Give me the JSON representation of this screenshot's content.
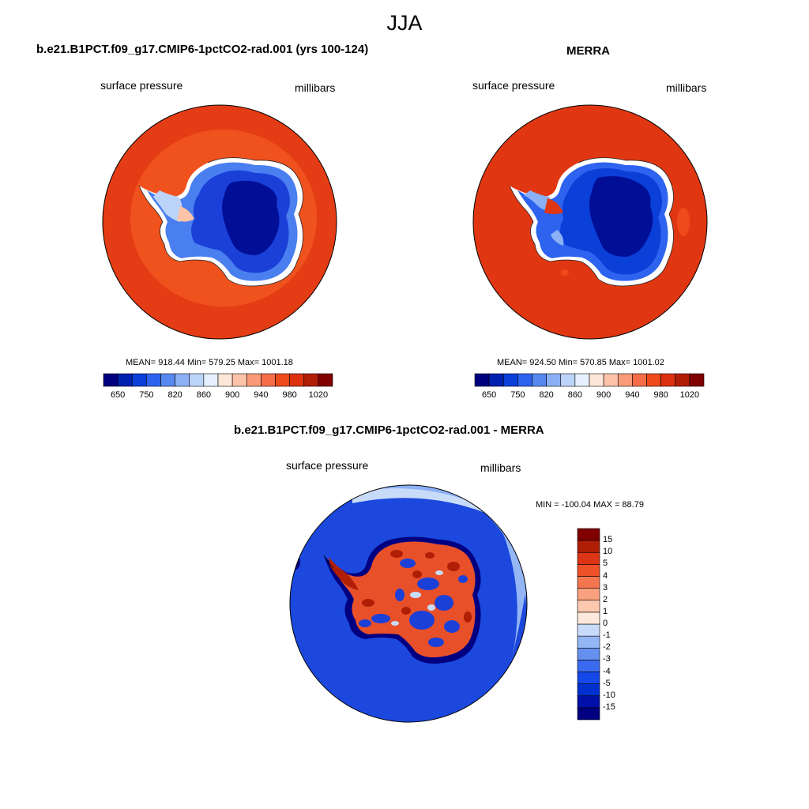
{
  "title": "JJA",
  "panels": [
    {
      "title": "b.e21.B1PCT.f09_g17.CMIP6-1pctCO2-rad.001 (yrs 100-124)",
      "left_label": "surface pressure",
      "right_label": "millibars",
      "stats": "MEAN= 918.44  Min= 579.25  Max= 1001.18"
    },
    {
      "title": "MERRA",
      "left_label": "surface pressure",
      "right_label": "millibars",
      "stats": "MEAN= 924.50  Min= 570.85  Max= 1001.02"
    },
    {
      "title": "b.e21.B1PCT.f09_g17.CMIP6-1pctCO2-rad.001 - MERRA",
      "left_label": "surface pressure",
      "right_label": "millibars",
      "stats": "MIN = -100.04 MAX =  88.79"
    }
  ],
  "colorbar_abs": {
    "colors": [
      "#00007f",
      "#0020b0",
      "#0a3fd8",
      "#2e63f0",
      "#5788f0",
      "#8cb0f5",
      "#bcd4fa",
      "#e6f0ff",
      "#fde6d8",
      "#fcc3a8",
      "#f99a78",
      "#f56e48",
      "#ee4a1c",
      "#dc3210",
      "#b21e05",
      "#800000"
    ],
    "tick_labels": [
      "650",
      "750",
      "820",
      "860",
      "900",
      "940",
      "980",
      "1020"
    ]
  },
  "colorbar_diff": {
    "colors": [
      "#000080",
      "#0010a8",
      "#0030d0",
      "#1448e8",
      "#3a6af0",
      "#6690f0",
      "#94b6f5",
      "#c8dcfa",
      "#fde8dc",
      "#fcc8ae",
      "#f9a07e",
      "#f47650",
      "#ee5028",
      "#dc3414",
      "#b01e06",
      "#800000"
    ],
    "tick_labels": [
      "15",
      "10",
      "5",
      "4",
      "3",
      "2",
      "1",
      "0",
      "-1",
      "-2",
      "-3",
      "-4",
      "-5",
      "-10",
      "-15"
    ]
  },
  "colors": {
    "ocean_model": "#e8401a",
    "ocean_model_outer": "#e13f18",
    "ocean_merra": "#e03712",
    "ice_deep": "#000f96",
    "ice_mid": "#1a40d8",
    "ice_light": "#4a7ff0",
    "diff_ocean": "#1c48de",
    "diff_ring": "#5a86ec"
  }
}
